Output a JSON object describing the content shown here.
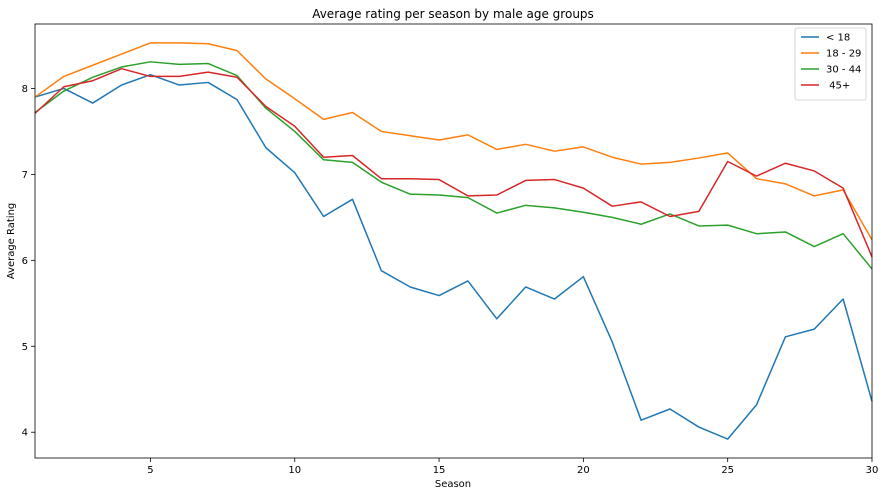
{
  "chart_data": {
    "type": "line",
    "title": "Average rating per season by male age groups",
    "xlabel": "Season",
    "ylabel": "Average Rating",
    "xlim": [
      1,
      30
    ],
    "ylim": [
      3.7,
      8.75
    ],
    "xticks": [
      5,
      10,
      15,
      20,
      25,
      30
    ],
    "yticks": [
      4,
      5,
      6,
      7,
      8
    ],
    "grid": false,
    "legend_position": "top-right",
    "x": [
      1,
      2,
      3,
      4,
      5,
      6,
      7,
      8,
      9,
      10,
      11,
      12,
      13,
      14,
      15,
      16,
      17,
      18,
      19,
      20,
      21,
      22,
      23,
      24,
      25,
      26,
      27,
      28,
      29,
      30
    ],
    "series": [
      {
        "name": "< 18",
        "color": "#1f77b4",
        "values": [
          7.9,
          8.0,
          7.83,
          8.04,
          8.16,
          8.04,
          8.07,
          7.87,
          7.31,
          7.02,
          6.51,
          6.71,
          5.88,
          5.69,
          5.59,
          5.76,
          5.32,
          5.69,
          5.55,
          5.81,
          5.05,
          4.14,
          4.27,
          4.06,
          3.92,
          4.32,
          5.11,
          5.2,
          5.55,
          4.36
        ]
      },
      {
        "name": "18 - 29",
        "color": "#ff7f0e",
        "values": [
          7.9,
          8.14,
          8.27,
          8.4,
          8.53,
          8.53,
          8.52,
          8.44,
          8.11,
          7.88,
          7.64,
          7.72,
          7.5,
          7.45,
          7.4,
          7.46,
          7.29,
          7.35,
          7.27,
          7.32,
          7.2,
          7.12,
          7.14,
          7.19,
          7.25,
          6.95,
          6.89,
          6.75,
          6.82,
          6.24
        ]
      },
      {
        "name": "30 - 44",
        "color": "#2ca02c",
        "values": [
          7.72,
          7.97,
          8.13,
          8.25,
          8.31,
          8.28,
          8.29,
          8.15,
          7.77,
          7.5,
          7.17,
          7.14,
          6.91,
          6.77,
          6.76,
          6.73,
          6.55,
          6.64,
          6.61,
          6.56,
          6.5,
          6.42,
          6.54,
          6.4,
          6.41,
          6.31,
          6.33,
          6.16,
          6.31,
          5.9
        ]
      },
      {
        "name": " 45+",
        "color": "#d62728",
        "values": [
          7.71,
          8.02,
          8.09,
          8.23,
          8.14,
          8.14,
          8.19,
          8.13,
          7.79,
          7.56,
          7.2,
          7.22,
          6.95,
          6.95,
          6.94,
          6.75,
          6.76,
          6.93,
          6.94,
          6.84,
          6.63,
          6.68,
          6.51,
          6.57,
          7.15,
          6.98,
          7.13,
          7.04,
          6.84,
          6.04
        ]
      }
    ]
  }
}
